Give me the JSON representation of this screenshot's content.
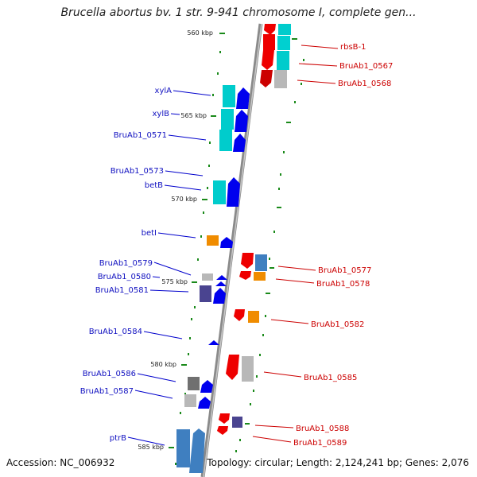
{
  "title": "Brucella abortus bv. 1 str. 9-941 chromosome I, complete gen...",
  "accession": "Accession: NC_006932",
  "summary": "Topology: circular; Length: 2,124,241 bp; Genes: 2,076",
  "kbp_labels": [
    "560 kbp",
    "565 kbp",
    "570 kbp",
    "575 kbp",
    "580 kbp",
    "585 kbp"
  ],
  "left_genes": [
    "xylA",
    "xylB",
    "BruAb1_0571",
    "BruAb1_0573",
    "betB",
    "betI",
    "BruAb1_0579",
    "BruAb1_0580",
    "BruAb1_0581",
    "BruAb1_0584",
    "BruAb1_0586",
    "BruAb1_0587",
    "ptrB"
  ],
  "right_genes": [
    "rbsB-1",
    "BruAb1_0567",
    "BruAb1_0568",
    "BruAb1_0577",
    "BruAb1_0578",
    "BruAb1_0582",
    "BruAb1_0585",
    "BruAb1_0588",
    "BruAb1_0589"
  ],
  "colors": {
    "forward_arrow": "#0000ee",
    "reverse_arrow": "#ee0000",
    "cyan": "#00cccc",
    "steel": "#3f7fc0",
    "orange": "#f08c00",
    "grey": "#b8b8b8",
    "navy": "#4a4490",
    "tick": "#1a8a1a",
    "axis": "#888888"
  }
}
